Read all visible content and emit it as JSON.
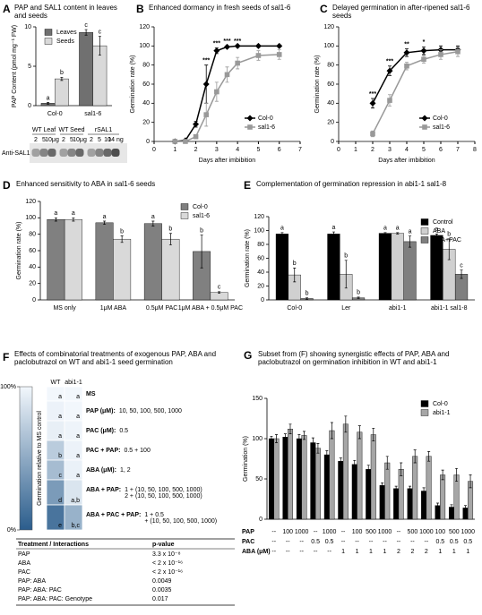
{
  "chart_data": [
    {
      "type": "bar",
      "panel": "A",
      "title": "PAP and SAL1 content in leaves and seeds",
      "ylabel": "PAP Content (pmol mg⁻¹ FW)",
      "categories": [
        "Col-0",
        "sal1-6"
      ],
      "ylim": [
        0,
        10
      ],
      "yticks": [
        0,
        5,
        10
      ],
      "legend": "upper left",
      "series": [
        {
          "name": "Leaves",
          "color": "#707070",
          "values": [
            0.3,
            9.3
          ],
          "errors": [
            0.1,
            0.35
          ],
          "letters": [
            "a",
            "c"
          ]
        },
        {
          "name": "Seeds",
          "color": "#d9d9d9",
          "values": [
            3.4,
            7.6
          ],
          "errors": [
            0.2,
            1.2
          ],
          "letters": [
            "b",
            "c"
          ]
        }
      ]
    },
    {
      "type": "line",
      "panel": "B",
      "title": "Enhanced dormancy in fresh seeds of sal1-6",
      "xlabel": "Days after imbibition",
      "ylabel": "Germination rate (%)",
      "x": [
        1,
        1.5,
        2,
        2.5,
        3,
        3.5,
        4,
        5,
        6
      ],
      "xlim": [
        0,
        7
      ],
      "xticks": [
        0,
        1,
        2,
        3,
        4,
        5,
        6,
        7
      ],
      "ylim": [
        0,
        120
      ],
      "yticks": [
        0,
        20,
        40,
        60,
        80,
        100,
        120
      ],
      "legend": "lower right",
      "series": [
        {
          "name": "Col-0",
          "color": "#000000",
          "marker": "diamond",
          "values": [
            0,
            1,
            18,
            60,
            95,
            99,
            100,
            100,
            100
          ],
          "errors": [
            0,
            0,
            3,
            20,
            3,
            1,
            0,
            0,
            0
          ]
        },
        {
          "name": "sal1-6",
          "color": "#999999",
          "marker": "square",
          "values": [
            0,
            0,
            5,
            28,
            52,
            70,
            82,
            90,
            91
          ],
          "errors": [
            0,
            0,
            2,
            12,
            10,
            8,
            6,
            5,
            5
          ]
        }
      ],
      "annotations": [
        {
          "x": 2.5,
          "text": "***"
        },
        {
          "x": 3,
          "text": "***"
        },
        {
          "x": 3.5,
          "text": "***"
        },
        {
          "x": 4,
          "text": "***"
        }
      ]
    },
    {
      "type": "line",
      "panel": "C",
      "title": "Delayed germination in after-ripened sal1-6 seeds",
      "xlabel": "Days after imbibition",
      "ylabel": "Germination rate (%)",
      "x": [
        2,
        3,
        4,
        5,
        6,
        7
      ],
      "xlim": [
        0,
        8
      ],
      "xticks": [
        0,
        1,
        2,
        3,
        4,
        5,
        6,
        7,
        8
      ],
      "ylim": [
        0,
        120
      ],
      "yticks": [
        0,
        20,
        40,
        60,
        80,
        100,
        120
      ],
      "legend": "lower right",
      "series": [
        {
          "name": "Col-0",
          "color": "#000000",
          "marker": "diamond",
          "values": [
            40,
            74,
            93,
            95,
            96,
            96
          ],
          "errors": [
            5,
            5,
            4,
            4,
            4,
            4
          ]
        },
        {
          "name": "sal1-6",
          "color": "#999999",
          "marker": "square",
          "values": [
            8,
            43,
            79,
            86,
            91,
            94
          ],
          "errors": [
            3,
            6,
            4,
            4,
            5,
            5
          ]
        }
      ],
      "annotations": [
        {
          "x": 2,
          "text": "***"
        },
        {
          "x": 3,
          "text": "***"
        },
        {
          "x": 4,
          "text": "**"
        },
        {
          "x": 5,
          "text": "*"
        }
      ]
    },
    {
      "type": "bar",
      "panel": "D",
      "title": "Enhanced sensitivity to ABA in sal1-6 seeds",
      "ylabel": "Germination rate (%)",
      "categories": [
        "MS only",
        "1μM ABA",
        "0.5μM PAC",
        "1μM ABA + 0.5μM PAC"
      ],
      "ylim": [
        0,
        120
      ],
      "yticks": [
        0,
        20,
        40,
        60,
        80,
        100,
        120
      ],
      "legend": "upper right",
      "series": [
        {
          "name": "Col-0",
          "color": "#808080",
          "values": [
            98,
            94,
            93,
            59
          ],
          "errors": [
            2,
            2,
            3,
            20
          ],
          "letters": [
            "a",
            "a",
            "a",
            "b"
          ]
        },
        {
          "name": "sal1-6",
          "color": "#d9d9d9",
          "values": [
            98,
            74,
            74,
            9
          ],
          "errors": [
            2,
            4,
            7,
            1
          ],
          "letters": [
            "a",
            "b",
            "b",
            "c"
          ]
        }
      ]
    },
    {
      "type": "bar",
      "panel": "E",
      "title": "Complementation of germination repression in abi1-1 sal1-8",
      "ylabel": "Germination rate (%)",
      "categories": [
        "Col-0",
        "Ler",
        "abi1-1",
        "abi1-1 sal1-8"
      ],
      "ylim": [
        0,
        120
      ],
      "yticks": [
        0,
        20,
        40,
        60,
        80,
        100,
        120
      ],
      "legend": "upper right",
      "series": [
        {
          "name": "Control",
          "color": "#000000",
          "values": [
            95,
            95,
            96,
            93
          ],
          "errors": [
            2,
            3,
            1,
            2
          ],
          "letters": [
            "a",
            "a",
            "a",
            "a"
          ]
        },
        {
          "name": "ABA",
          "color": "#d0d0d0",
          "values": [
            36,
            37,
            96,
            73
          ],
          "errors": [
            10,
            20,
            1,
            15
          ],
          "letters": [
            "b",
            "b",
            "a",
            "b"
          ]
        },
        {
          "name": "ABA+PAC",
          "color": "#7f7f7f",
          "values": [
            2,
            3,
            84,
            37
          ],
          "errors": [
            1,
            1,
            8,
            6
          ],
          "letters": [
            "b",
            "b",
            "a",
            "c"
          ]
        }
      ]
    },
    {
      "type": "bar",
      "panel": "G",
      "title": "Subset from (F) showing synergistic effects of PAP, ABA and paclobutrazol on germination inhibition in WT and abi1-1",
      "ylabel": "Germination (%)",
      "categories": [
        null,
        null,
        null,
        null,
        null,
        null,
        null,
        null,
        null,
        null,
        null,
        null,
        null,
        null,
        null
      ],
      "ylim": [
        0,
        150
      ],
      "yticks": [
        0,
        50,
        100,
        150
      ],
      "legend": "upper right",
      "series": [
        {
          "name": "Col-0",
          "color": "#000000",
          "values": [
            100,
            102,
            100,
            95,
            80,
            72,
            68,
            62,
            42,
            38,
            38,
            35,
            17,
            15,
            14
          ],
          "errors": [
            3,
            4,
            5,
            6,
            5,
            4,
            5,
            5,
            3,
            3,
            3,
            4,
            3,
            3,
            3
          ]
        },
        {
          "name": "abi1-1",
          "color": "#a6a6a6",
          "values": [
            100,
            112,
            104,
            88,
            110,
            118,
            108,
            105,
            70,
            62,
            78,
            78,
            55,
            55,
            47
          ],
          "errors": [
            5,
            6,
            5,
            6,
            10,
            10,
            8,
            8,
            8,
            8,
            8,
            6,
            6,
            8,
            8
          ]
        }
      ],
      "treatments": [
        {
          "name": "PAP",
          "values": [
            "--",
            "100",
            "1000",
            "--",
            "1000",
            "--",
            "100",
            "500",
            "1000",
            "--",
            "500",
            "1000",
            "100",
            "500",
            "1000"
          ]
        },
        {
          "name": "PAC",
          "values": [
            "--",
            "--",
            "--",
            "0.5",
            "0.5",
            "--",
            "--",
            "--",
            "--",
            "--",
            "--",
            "--",
            "0.5",
            "0.5",
            "0.5"
          ]
        },
        {
          "name": "ABA (μM)",
          "values": [
            "--",
            "--",
            "--",
            "--",
            "--",
            "1",
            "1",
            "1",
            "1",
            "2",
            "2",
            "2",
            "1",
            "1",
            "1"
          ]
        }
      ]
    }
  ],
  "blot": {
    "groups": [
      {
        "name": "WT Leaf",
        "lanes": [
          "2",
          "5",
          "10μg"
        ]
      },
      {
        "name": "WT Seed",
        "lanes": [
          "2",
          "5",
          "10μg"
        ]
      },
      {
        "name": "rSAL1",
        "lanes": [
          "2",
          "5",
          "10",
          "14 ng"
        ]
      }
    ],
    "antibody": "Anti-SAL1"
  },
  "panel_f": {
    "panel": "F",
    "title": "Effects of combinatorial treatments of exogenous PAP, ABA and paclobutrazol on WT and abi1-1 seed germination",
    "colorbar": {
      "label": "Germination relative to MS control",
      "lim": [
        0,
        100
      ],
      "ticks": [
        {
          "value": 100,
          "label": "100%"
        },
        {
          "value": 0,
          "label": "0%"
        }
      ]
    },
    "columns": [
      "WT",
      "abi1-1"
    ],
    "rows": [
      {
        "treatment": "MS",
        "doses": [],
        "wt": {
          "letter": "a",
          "level": 100
        },
        "abi": {
          "letter": "a",
          "level": 100
        }
      },
      {
        "treatment": "PAP (μM):",
        "doses": [
          "10, 50, 100, 500, 1000"
        ],
        "wt": {
          "letter": "a",
          "level": 97
        },
        "abi": {
          "letter": "a",
          "level": 100
        }
      },
      {
        "treatment": "PAC (μM):",
        "doses": [
          "0.5"
        ],
        "wt": {
          "letter": "a",
          "level": 95
        },
        "abi": {
          "letter": "a",
          "level": 98
        }
      },
      {
        "treatment": "PAC + PAP:",
        "doses": [
          "0.5 + 100"
        ],
        "wt": {
          "letter": "b",
          "level": 72
        },
        "abi": {
          "letter": "a",
          "level": 97
        }
      },
      {
        "treatment": "ABA (μM):",
        "doses": [
          "1, 2"
        ],
        "wt": {
          "letter": "c",
          "level": 62
        },
        "abi": {
          "letter": "a",
          "level": 96
        }
      },
      {
        "treatment": "ABA + PAP:",
        "doses": [
          "1 + (10, 50, 100, 500, 1000)",
          "2 + (10, 50, 100, 500, 1000)"
        ],
        "wt": {
          "letter": "d",
          "level": 40
        },
        "abi": {
          "letter": "a,b",
          "level": 88
        }
      },
      {
        "treatment": "ABA + PAC + PAP:",
        "doses": [
          "1 + 0.5",
          "+ (10, 50, 100, 500, 1000)"
        ],
        "wt": {
          "letter": "e",
          "level": 15
        },
        "abi": {
          "letter": "b,c",
          "level": 55
        }
      }
    ]
  },
  "stats": {
    "header": [
      "Treatment / Interactions",
      "p-value"
    ],
    "rows": [
      [
        "PAP",
        "3.3 x 10⁻⁸"
      ],
      [
        "ABA",
        "< 2 x 10⁻¹⁶"
      ],
      [
        "PAC",
        "< 2 x 10⁻¹⁶"
      ],
      [
        "PAP: ABA",
        "0.0049"
      ],
      [
        "PAP: ABA: PAC",
        "0.0035"
      ],
      [
        "PAP: ABA: PAC: Genotype",
        "0.017"
      ]
    ]
  }
}
